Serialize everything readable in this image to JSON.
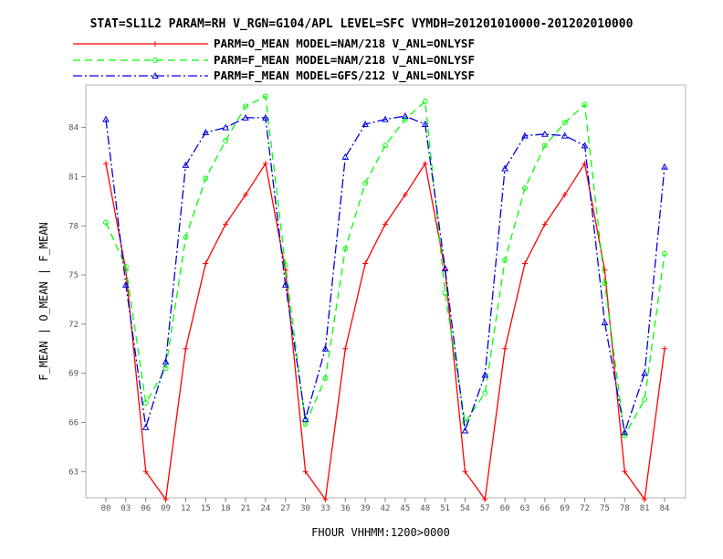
{
  "chart_data": {
    "type": "line",
    "title": "STAT=SL1L2 PARAM=RH V_RGN=G104/APL LEVEL=SFC VYMDH=201201010000-201202010000",
    "xlabel": "FHOUR VHHMM:1200>0000",
    "ylabel": "F_MEAN | O_MEAN | F_MEAN",
    "categories": [
      "00",
      "03",
      "06",
      "09",
      "12",
      "15",
      "18",
      "21",
      "24",
      "27",
      "30",
      "33",
      "36",
      "39",
      "42",
      "45",
      "48",
      "51",
      "54",
      "57",
      "60",
      "63",
      "66",
      "69",
      "72",
      "75",
      "78",
      "81",
      "84"
    ],
    "yticks": [
      "63",
      "66",
      "69",
      "72",
      "75",
      "78",
      "81",
      "84"
    ],
    "ylim": [
      61.4,
      86.6
    ],
    "grid": false,
    "legend_position": "top",
    "series": [
      {
        "name": "PARM=O_MEAN MODEL=NAM/218 V_ANL=ONLYSF",
        "color": "#ff0000",
        "dash": "",
        "marker": "plus",
        "values": [
          81.8,
          75.3,
          63.0,
          61.3,
          70.5,
          75.7,
          78.1,
          79.9,
          81.8,
          75.3,
          63.0,
          61.3,
          70.5,
          75.7,
          78.1,
          79.9,
          81.8,
          75.3,
          63.0,
          61.3,
          70.5,
          75.7,
          78.1,
          79.9,
          81.8,
          75.3,
          63.0,
          61.3,
          70.5
        ]
      },
      {
        "name": "PARM=F_MEAN MODEL=NAM/218 V_ANL=ONLYSF",
        "color": "#00ff00",
        "dash": "8,5",
        "marker": "circle",
        "values": [
          78.2,
          75.5,
          67.2,
          69.3,
          77.3,
          80.9,
          83.2,
          85.3,
          85.9,
          75.6,
          65.9,
          68.7,
          76.6,
          80.6,
          82.9,
          84.5,
          85.6,
          73.9,
          66.0,
          67.8,
          75.9,
          80.3,
          82.9,
          84.3,
          85.4,
          74.5,
          65.2,
          67.4,
          76.3
        ]
      },
      {
        "name": "PARM=F_MEAN MODEL=GFS/212 V_ANL=ONLYSF",
        "color": "#0000dd",
        "dash": "10,3,2,3",
        "marker": "triangle",
        "values": [
          84.5,
          74.4,
          65.7,
          69.7,
          81.7,
          83.7,
          84.0,
          84.6,
          84.6,
          74.4,
          66.2,
          70.5,
          82.2,
          84.2,
          84.5,
          84.7,
          84.2,
          75.4,
          65.5,
          68.9,
          81.5,
          83.5,
          83.6,
          83.5,
          82.9,
          72.1,
          65.4,
          69.0,
          81.6
        ]
      }
    ]
  }
}
